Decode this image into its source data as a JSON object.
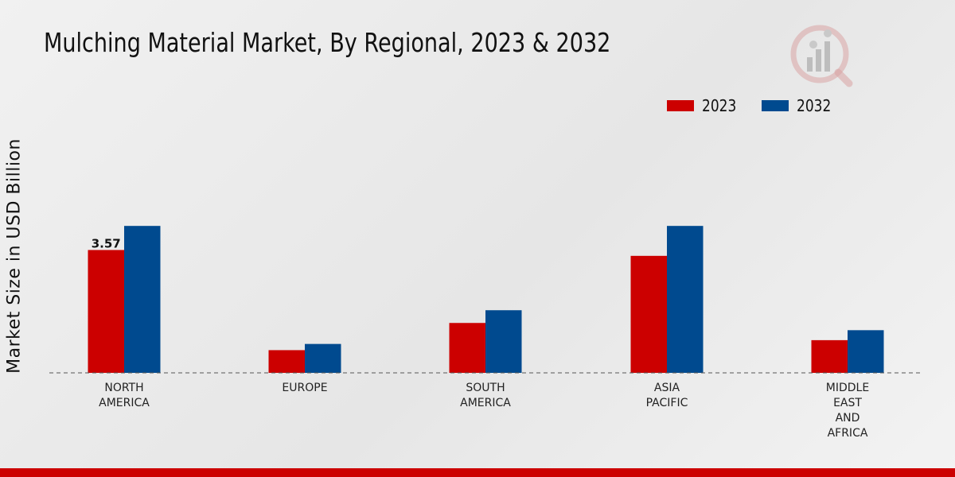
{
  "chart_data": {
    "type": "bar",
    "title": "Mulching Material Market, By Regional, 2023 & 2032",
    "xlabel": "",
    "ylabel": "Market Size in USD Billion",
    "categories": [
      "NORTH\nAMERICA",
      "EUROPE",
      "SOUTH\nAMERICA",
      "ASIA\nPACIFIC",
      "MIDDLE\nEAST\nAND\nAFRICA"
    ],
    "series": [
      {
        "name": "2023",
        "color": "#cc0000",
        "values": [
          3.57,
          0.66,
          1.45,
          3.4,
          0.95
        ]
      },
      {
        "name": "2032",
        "color": "#004a8f",
        "values": [
          4.27,
          0.84,
          1.82,
          4.27,
          1.24
        ]
      }
    ],
    "data_labels": [
      {
        "series": "2023",
        "category_index": 0,
        "text": "3.57"
      }
    ],
    "ylim": [
      0,
      7
    ],
    "grid": false,
    "legend_position": "top-right"
  },
  "logo_icon": "market-research-logo-icon"
}
